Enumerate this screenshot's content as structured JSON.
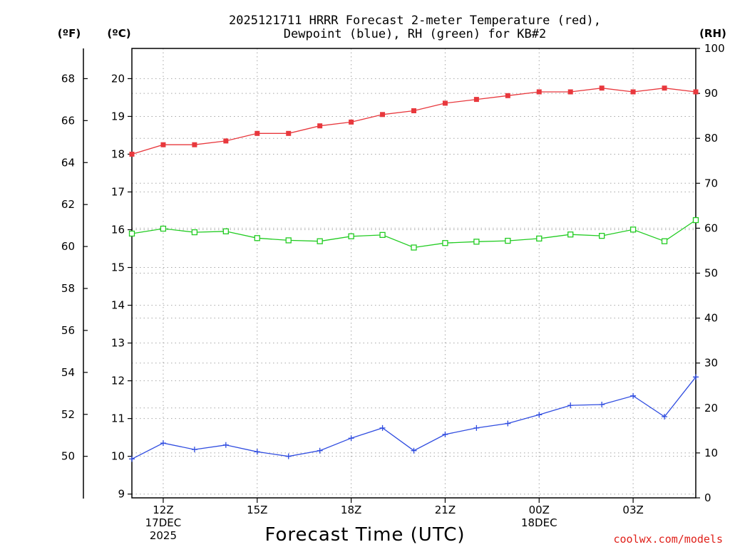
{
  "chart_data": {
    "type": "line",
    "title_line1": "2025121711 HRRR Forecast 2-meter Temperature (red),",
    "title_line2": "Dewpoint (blue), RH (green) for KB#2",
    "xlabel": "Forecast Time (UTC)",
    "credit": "coolwx.com/models",
    "units": {
      "fahrenheit": "(ºF)",
      "celsius": "(ºC)",
      "rh": "(RH)"
    },
    "x_hours": [
      11,
      12,
      13,
      14,
      15,
      16,
      17,
      18,
      19,
      20,
      21,
      22,
      23,
      24,
      25,
      26,
      27,
      28,
      29
    ],
    "xlim": [
      11,
      29
    ],
    "x_ticks": [
      {
        "hour": 12,
        "lines": [
          "12Z",
          "17DEC",
          "2025"
        ]
      },
      {
        "hour": 15,
        "lines": [
          "15Z"
        ]
      },
      {
        "hour": 18,
        "lines": [
          "18Z"
        ]
      },
      {
        "hour": 21,
        "lines": [
          "21Z"
        ]
      },
      {
        "hour": 24,
        "lines": [
          "00Z",
          "18DEC"
        ]
      },
      {
        "hour": 27,
        "lines": [
          "03Z"
        ]
      }
    ],
    "ylim_celsius": [
      8.9,
      20.8
    ],
    "ylim_rh": [
      0,
      100
    ],
    "celsius_ticks": [
      "9",
      "10",
      "11",
      "12",
      "13",
      "14",
      "15",
      "16",
      "17",
      "18",
      "19",
      "20"
    ],
    "fahrenheit_ticks": [
      "50",
      "52",
      "54",
      "56",
      "58",
      "60",
      "62",
      "64",
      "66",
      "68"
    ],
    "rh_ticks": [
      "0",
      "10",
      "20",
      "30",
      "40",
      "50",
      "60",
      "70",
      "80",
      "90",
      "100"
    ],
    "series": [
      {
        "name": "Temperature",
        "units": "C",
        "color": "#e8383d",
        "marker": "filled-square",
        "values": [
          18.0,
          18.25,
          18.25,
          18.35,
          18.55,
          18.55,
          18.75,
          18.85,
          19.05,
          19.15,
          19.35,
          19.45,
          19.55,
          19.65,
          19.65,
          19.75,
          19.65,
          19.75,
          19.65
        ]
      },
      {
        "name": "Dewpoint",
        "units": "C",
        "color": "#2f4ce0",
        "marker": "plus",
        "values": [
          9.93,
          10.35,
          10.18,
          10.3,
          10.12,
          10.0,
          10.15,
          10.48,
          10.75,
          10.15,
          10.58,
          10.75,
          10.87,
          11.1,
          11.35,
          11.37,
          11.6,
          11.05,
          12.1
        ]
      },
      {
        "name": "RH",
        "units": "%",
        "color": "#22cc22",
        "marker": "open-square",
        "values": [
          58.8,
          59.9,
          59.1,
          59.3,
          57.8,
          57.3,
          57.1,
          58.2,
          58.5,
          55.7,
          56.7,
          57.0,
          57.2,
          57.7,
          58.6,
          58.3,
          59.7,
          57.1,
          61.8
        ]
      }
    ]
  }
}
